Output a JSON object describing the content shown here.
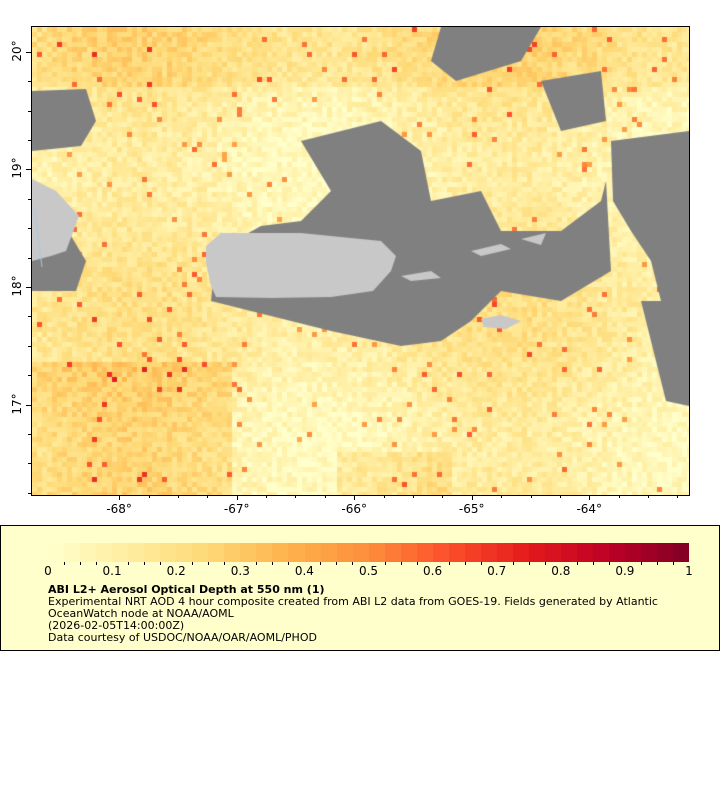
{
  "map": {
    "lon_range": [
      -68.75,
      -63.16
    ],
    "lat_range": [
      16.24,
      20.22
    ],
    "x_ticks": [
      {
        "value": -68,
        "label": "-68°"
      },
      {
        "value": -67,
        "label": "-67°"
      },
      {
        "value": -66,
        "label": "-66°"
      },
      {
        "value": -65,
        "label": "-65°"
      },
      {
        "value": -64,
        "label": "-64°"
      }
    ],
    "y_ticks": [
      {
        "value": 20,
        "label": "20°"
      },
      {
        "value": 19,
        "label": "19°"
      },
      {
        "value": 18,
        "label": "18°"
      },
      {
        "value": 17,
        "label": "17°"
      }
    ],
    "colors": {
      "land": "#c8c8c8",
      "no_data": "#808080",
      "water": "#a8c8e8"
    }
  },
  "colorbar": {
    "min": 0,
    "max": 1,
    "labels": [
      "0",
      "0.1",
      "0.2",
      "0.3",
      "0.4",
      "0.5",
      "0.6",
      "0.7",
      "0.8",
      "0.9",
      "1"
    ],
    "colormap": [
      "#ffffcc",
      "#ffeda0",
      "#fed976",
      "#feb24c",
      "#fd8d3c",
      "#fc4e2a",
      "#e31a1c",
      "#bd0026",
      "#800026"
    ]
  },
  "legend": {
    "title": "ABI L2+ Aerosol Optical Depth at 550 nm (1)",
    "description_line1": "Experimental NRT AOD 4 hour composite created from ABI L2 data from GOES-19. Fields generated by Atlantic",
    "description_line2": "OceanWatch node at NOAA/AOML",
    "time": "(2026-02-05T14:00:00Z)",
    "credit": "Data courtesy of USDOC/NOAA/OAR/AOML/PHOD"
  }
}
